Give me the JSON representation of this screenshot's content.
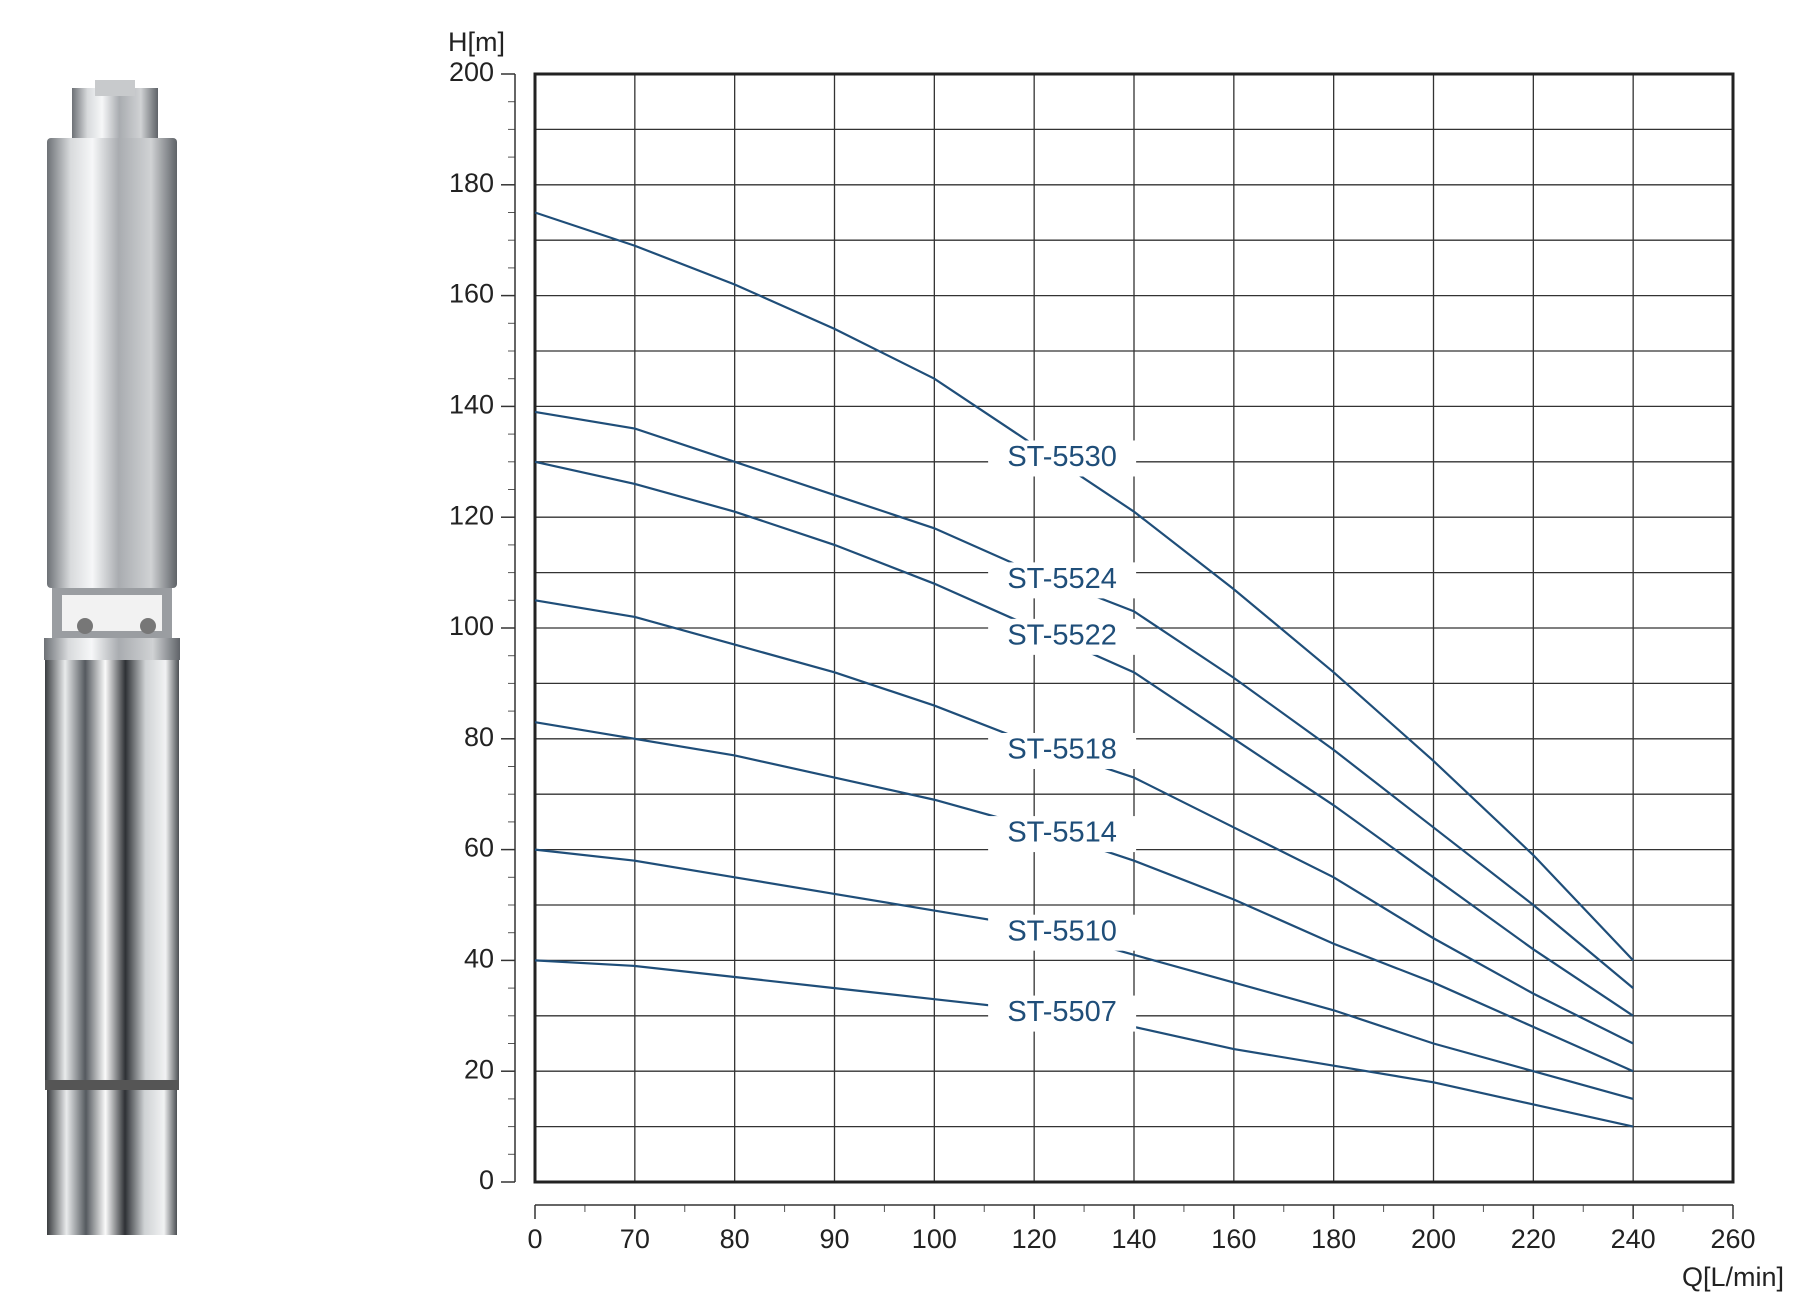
{
  "chart_data": {
    "type": "line",
    "x_label": "Q[L/min]",
    "y_label": "H[m]",
    "x": [
      0,
      70,
      80,
      90,
      100,
      120,
      140,
      160,
      180,
      200,
      220,
      240
    ],
    "series": [
      {
        "name": "ST-5530",
        "color": "#1f4e79",
        "values": [
          175,
          169,
          162,
          154,
          145,
          133,
          121,
          107,
          92,
          76,
          59,
          40
        ]
      },
      {
        "name": "ST-5524",
        "color": "#1f4e79",
        "values": [
          139,
          136,
          130,
          124,
          118,
          110,
          103,
          91,
          78,
          64,
          50,
          35
        ]
      },
      {
        "name": "ST-5522",
        "color": "#1f4e79",
        "values": [
          130,
          126,
          121,
          115,
          108,
          100,
          92,
          80,
          68,
          55,
          42,
          30
        ]
      },
      {
        "name": "ST-5518",
        "color": "#1f4e79",
        "values": [
          105,
          102,
          97,
          92,
          86,
          79,
          73,
          64,
          55,
          44,
          34,
          25
        ]
      },
      {
        "name": "ST-5514",
        "color": "#1f4e79",
        "values": [
          83,
          80,
          77,
          73,
          69,
          64,
          58,
          51,
          43,
          36,
          28,
          20
        ]
      },
      {
        "name": "ST-5510",
        "color": "#1f4e79",
        "values": [
          60,
          58,
          55,
          52,
          49,
          46,
          41,
          36,
          31,
          25,
          20,
          15
        ]
      },
      {
        "name": "ST-5507",
        "color": "#1f4e79",
        "values": [
          40,
          39,
          37,
          35,
          33,
          31,
          28,
          24,
          21,
          18,
          14,
          10
        ]
      }
    ],
    "xlim": [
      0,
      260
    ],
    "xticks": [
      0,
      70,
      80,
      90,
      100,
      120,
      140,
      160,
      180,
      200,
      220,
      240,
      260
    ],
    "ylim": [
      0,
      200
    ],
    "yticks": [
      0,
      20,
      40,
      60,
      80,
      100,
      120,
      140,
      160,
      180,
      200
    ],
    "grid": true
  }
}
